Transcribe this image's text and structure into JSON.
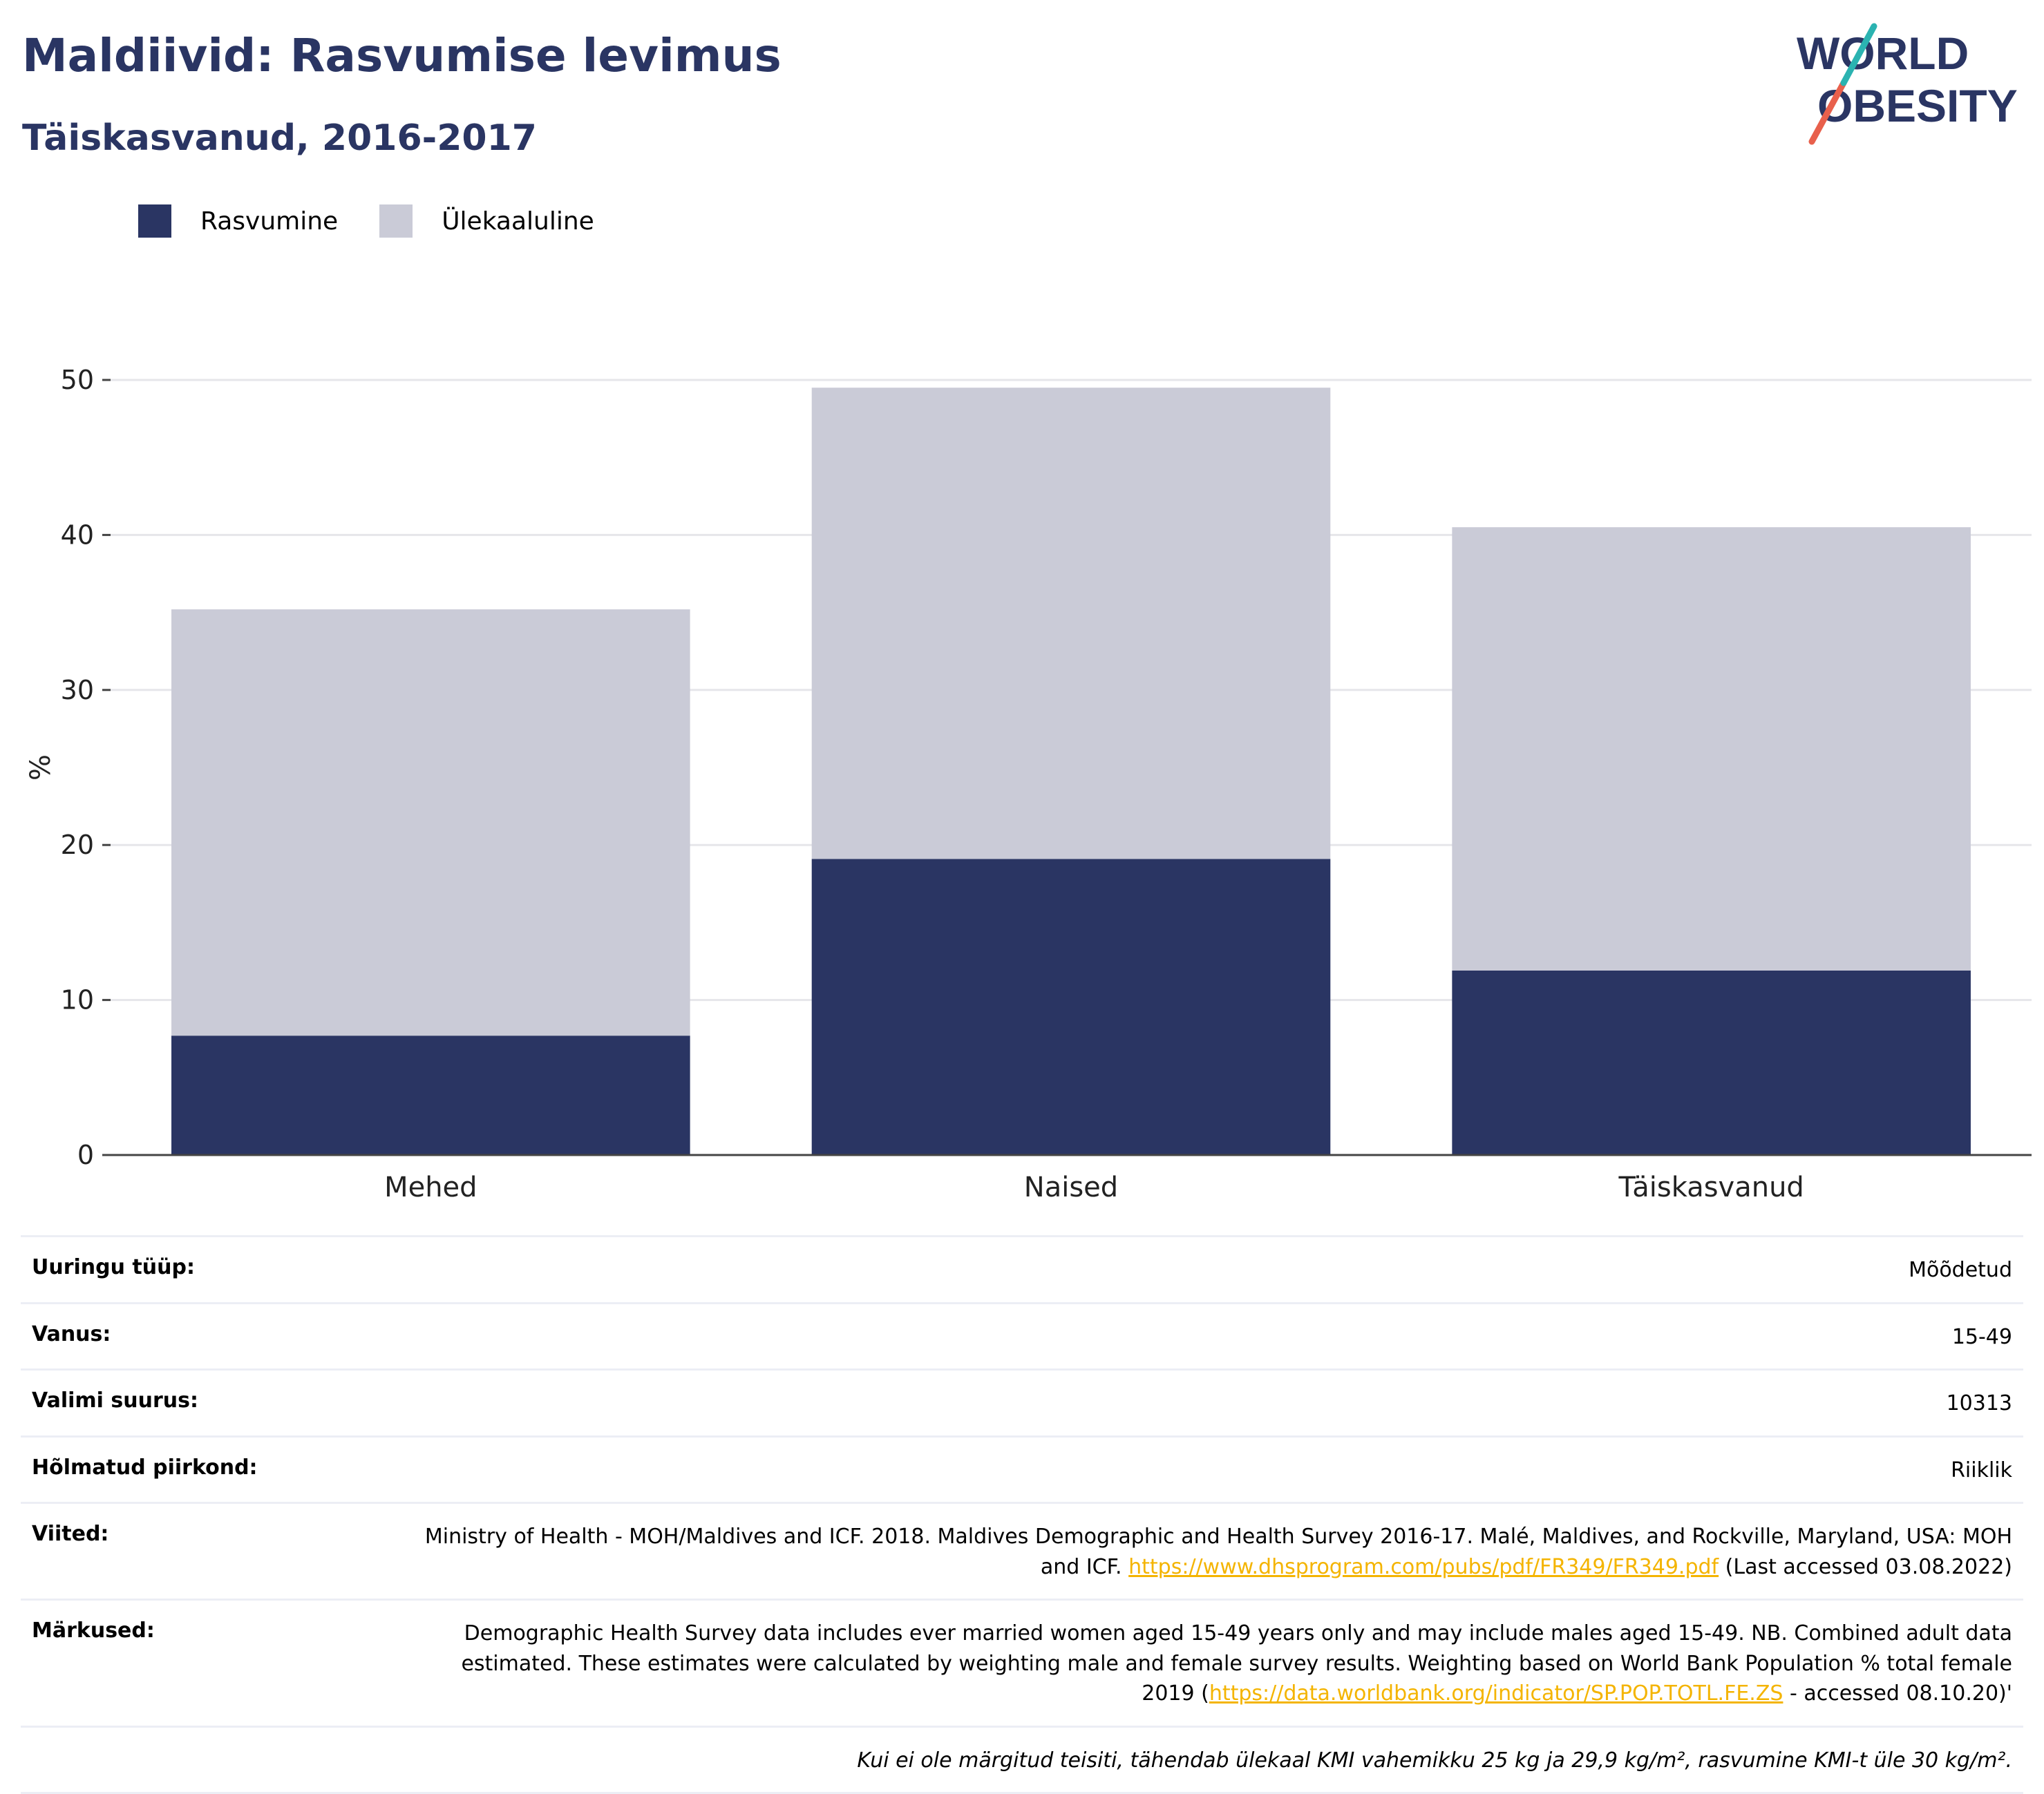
{
  "header": {
    "title": "Maldiivid: Rasvumise levimus",
    "subtitle": "Täiskasvanud, 2016-2017"
  },
  "logo": {
    "line1": "WORLD",
    "line2": "OBESITY"
  },
  "colors": {
    "obesity": "#2a3563",
    "overweight": "#cacbd7",
    "text": "#2a3563"
  },
  "legend": [
    "Rasvumine",
    "Ülekaaluline"
  ],
  "chart_data": {
    "type": "bar",
    "stacked": true,
    "categories": [
      "Mehed",
      "Naised",
      "Täiskasvanud"
    ],
    "series": [
      {
        "name": "Rasvumine",
        "values": [
          7.7,
          19.1,
          11.9
        ]
      },
      {
        "name": "Ülekaaluline",
        "values": [
          27.5,
          30.4,
          28.6
        ]
      }
    ],
    "totals": [
      35.2,
      49.5,
      40.5
    ],
    "ylabel": "%",
    "ylim": [
      0,
      50
    ],
    "yticks": [
      0,
      10,
      20,
      30,
      40,
      50
    ],
    "grid": true,
    "legend_position": "top-left"
  },
  "info": {
    "survey_type": {
      "label": "Uuringu tüüp:",
      "value": "Mõõdetud"
    },
    "age": {
      "label": "Vanus:",
      "value": "15-49"
    },
    "sample": {
      "label": "Valimi suurus:",
      "value": "10313"
    },
    "region": {
      "label": "Hõlmatud piirkond:",
      "value": "Riiklik"
    },
    "references": {
      "label": "Viited:",
      "text_before": "Ministry of Health - MOH/Maldives and ICF. 2018. Maldives Demographic and Health Survey 2016-17. Malé, Maldives, and Rockville, Maryland, USA: MOH and ICF. ",
      "link": "https://www.dhsprogram.com/pubs/pdf/FR349/FR349.pdf",
      "text_after": " (Last accessed 03.08.2022)"
    },
    "notes": {
      "label": "Märkused:",
      "text_before": "Demographic Health Survey data includes ever married women aged 15-49 years only and may include males aged 15-49. NB. Combined adult data estimated. These estimates were calculated by weighting male and female survey results. Weighting based on World Bank Population % total female 2019 (",
      "link": "https://data.worldbank.org/indicator/SP.POP.TOTL.FE.ZS",
      "text_after": " - accessed 08.10.20)'"
    },
    "footnote": "Kui ei ole märgitud teisiti, tähendab ülekaal KMI vahemikku 25 kg ja 29,9 kg/m², rasvumine KMI-t üle 30 kg/m²."
  }
}
